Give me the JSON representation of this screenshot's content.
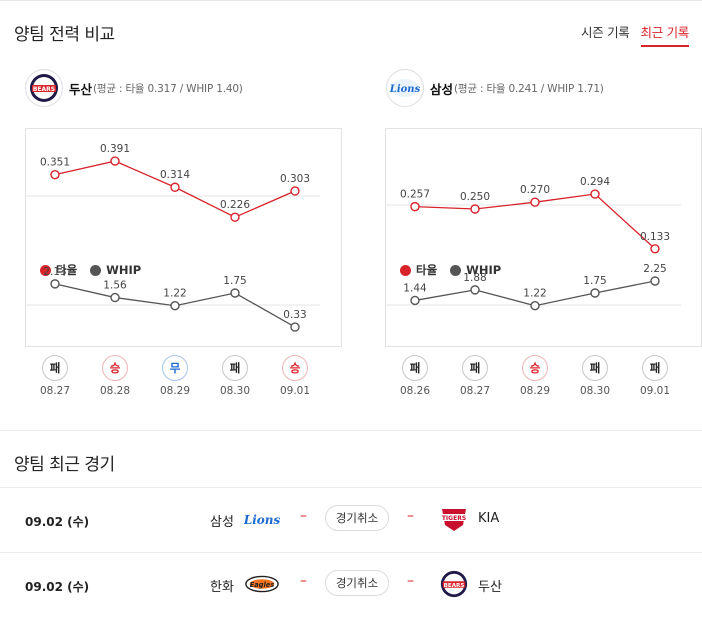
{
  "comparison": {
    "title": "양팀 전력 비교",
    "tabs": [
      {
        "label": "시즌 기록",
        "active": false
      },
      {
        "label": "최근 기록",
        "active": true
      }
    ]
  },
  "legend": {
    "avg_label": "타율",
    "whip_label": "WHIP"
  },
  "teams": [
    {
      "name": "두산",
      "stat_text": "(평균 : 타율 0.317 / WHIP 1.40)",
      "logo_icon": "doosan-bears-logo",
      "avg": [
        0.351,
        0.391,
        0.314,
        0.226,
        0.303
      ],
      "avg_labels": [
        "0.351",
        "0.391",
        "0.314",
        "0.226",
        "0.303"
      ],
      "whip": [
        2.13,
        1.56,
        1.22,
        1.75,
        0.33
      ],
      "whip_labels": [
        "2.13",
        "1.56",
        "1.22",
        "1.75",
        "0.33"
      ],
      "results": [
        {
          "label": "패",
          "type": "lose"
        },
        {
          "label": "승",
          "type": "win"
        },
        {
          "label": "무",
          "type": "draw"
        },
        {
          "label": "패",
          "type": "lose"
        },
        {
          "label": "승",
          "type": "win"
        }
      ],
      "dates": [
        "08.27",
        "08.28",
        "08.29",
        "08.30",
        "09.01"
      ]
    },
    {
      "name": "삼성",
      "stat_text": "(평균 : 타율 0.241 / WHIP 1.71)",
      "logo_icon": "samsung-lions-logo",
      "avg": [
        0.257,
        0.25,
        0.27,
        0.294,
        0.133
      ],
      "avg_labels": [
        "0.257",
        "0.250",
        "0.270",
        "0.294",
        "0.133"
      ],
      "whip": [
        1.44,
        1.88,
        1.22,
        1.75,
        2.25
      ],
      "whip_labels": [
        "1.44",
        "1.88",
        "1.22",
        "1.75",
        "2.25"
      ],
      "results": [
        {
          "label": "패",
          "type": "lose"
        },
        {
          "label": "패",
          "type": "lose"
        },
        {
          "label": "승",
          "type": "win"
        },
        {
          "label": "패",
          "type": "lose"
        },
        {
          "label": "패",
          "type": "lose"
        }
      ],
      "dates": [
        "08.26",
        "08.27",
        "08.29",
        "08.30",
        "09.01"
      ]
    }
  ],
  "chart_data": [
    {
      "type": "line",
      "x": [
        "08.27",
        "08.28",
        "08.29",
        "08.30",
        "09.01"
      ],
      "series": [
        {
          "name": "타율",
          "values": [
            0.351,
            0.391,
            0.314,
            0.226,
            0.303
          ],
          "color": "#d8232a"
        },
        {
          "name": "WHIP",
          "values": [
            2.13,
            1.56,
            1.22,
            1.75,
            0.33
          ],
          "color": "#555555"
        }
      ],
      "legend": "top-left",
      "grid": true
    },
    {
      "type": "line",
      "x": [
        "08.26",
        "08.27",
        "08.29",
        "08.30",
        "09.01"
      ],
      "series": [
        {
          "name": "타율",
          "values": [
            0.257,
            0.25,
            0.27,
            0.294,
            0.133
          ],
          "color": "#d8232a"
        },
        {
          "name": "WHIP",
          "values": [
            1.44,
            1.88,
            1.22,
            1.75,
            2.25
          ],
          "color": "#555555"
        }
      ],
      "legend": "top-left",
      "grid": true
    }
  ],
  "recent": {
    "title": "양팀 최근 경기",
    "games": [
      {
        "date": "09.02 (수)",
        "home": "삼성",
        "home_icon": "samsung-lions-logo",
        "status": "경기취소",
        "away": "KIA",
        "away_icon": "kia-tigers-logo"
      },
      {
        "date": "09.02 (수)",
        "home": "한화",
        "home_icon": "hanwha-eagles-logo",
        "status": "경기취소",
        "away": "두산",
        "away_icon": "doosan-bears-logo"
      }
    ]
  },
  "colors": {
    "accent": "#d8232a",
    "whip": "#555555",
    "draw": "#1a6ad1"
  }
}
